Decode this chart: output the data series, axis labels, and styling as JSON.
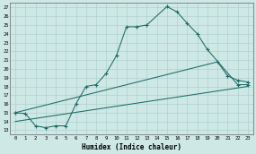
{
  "xlabel": "Humidex (Indice chaleur)",
  "background_color": "#cde8e5",
  "grid_color": "#a8ccc9",
  "line_color": "#1e6b65",
  "xlim": [
    -0.5,
    23.5
  ],
  "ylim": [
    12.5,
    27.5
  ],
  "xtick_labels": [
    "0",
    "1",
    "2",
    "3",
    "4",
    "5",
    "6",
    "7",
    "8",
    "9",
    "10",
    "11",
    "12",
    "13",
    "14",
    "15",
    "16",
    "17",
    "18",
    "19",
    "20",
    "21",
    "22",
    "23"
  ],
  "ytick_labels": [
    "13",
    "14",
    "15",
    "16",
    "17",
    "18",
    "19",
    "20",
    "21",
    "22",
    "23",
    "24",
    "25",
    "26",
    "27"
  ],
  "ytick_vals": [
    13,
    14,
    15,
    16,
    17,
    18,
    19,
    20,
    21,
    22,
    23,
    24,
    25,
    26,
    27
  ],
  "line1_x": [
    0,
    1,
    2,
    3,
    4,
    5,
    6,
    7,
    8,
    9,
    10,
    11,
    12,
    13,
    15,
    16,
    17,
    18,
    19,
    22,
    23
  ],
  "line1_y": [
    15.0,
    14.9,
    13.5,
    13.3,
    13.5,
    13.5,
    16.0,
    18.0,
    18.2,
    19.5,
    21.5,
    24.8,
    24.8,
    25.0,
    27.1,
    26.5,
    25.2,
    24.0,
    22.2,
    18.2,
    18.2
  ],
  "line2_x": [
    0,
    20,
    21,
    22,
    23
  ],
  "line2_y": [
    15.0,
    20.8,
    19.2,
    18.7,
    18.5
  ],
  "line3_x": [
    0,
    23
  ],
  "line3_y": [
    14.0,
    18.0
  ]
}
